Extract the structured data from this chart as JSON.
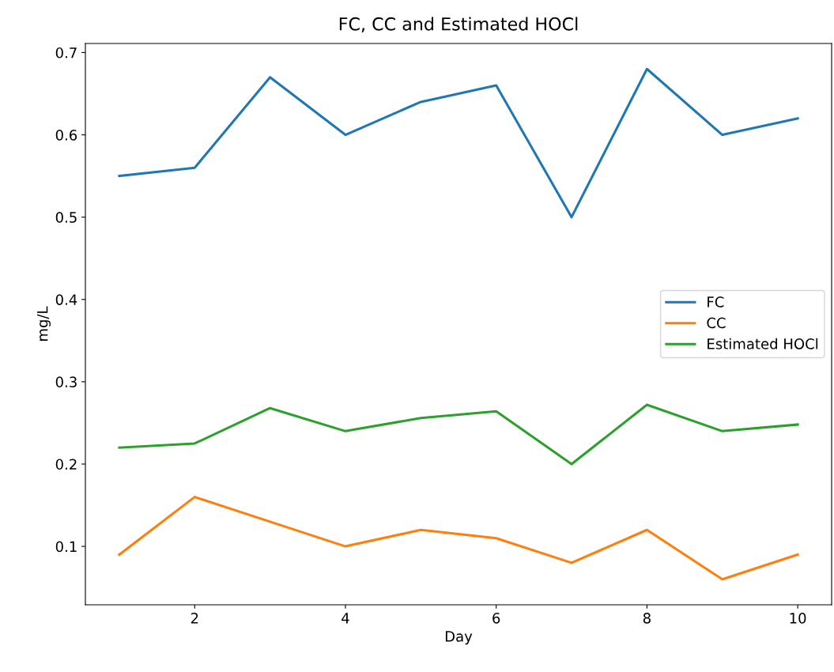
{
  "chart_data": {
    "type": "line",
    "title": "FC, CC and Estimated HOCl",
    "xlabel": "Day",
    "ylabel": "mg/L",
    "x": [
      1,
      2,
      3,
      4,
      5,
      6,
      7,
      8,
      9,
      10
    ],
    "series": [
      {
        "name": "FC",
        "color": "#1f77b4",
        "values": [
          0.55,
          0.56,
          0.67,
          0.6,
          0.64,
          0.66,
          0.5,
          0.68,
          0.6,
          0.62
        ]
      },
      {
        "name": "CC",
        "color": "#ff7f0e",
        "values": [
          0.09,
          0.16,
          0.13,
          0.1,
          0.12,
          0.11,
          0.08,
          0.12,
          0.06,
          0.09
        ]
      },
      {
        "name": "Estimated HOCl",
        "color": "#2ca02c",
        "values": [
          0.22,
          0.225,
          0.268,
          0.24,
          0.256,
          0.264,
          0.2,
          0.272,
          0.24,
          0.248
        ]
      }
    ],
    "xlim": [
      0.55,
      10.45
    ],
    "ylim": [
      0.029,
      0.711
    ],
    "xticks": [
      2,
      4,
      6,
      8,
      10
    ],
    "yticks": [
      0.1,
      0.2,
      0.3,
      0.4,
      0.5,
      0.6,
      0.7
    ],
    "legend": "center right",
    "grid": false,
    "marker": "none",
    "line_style": "solid"
  }
}
